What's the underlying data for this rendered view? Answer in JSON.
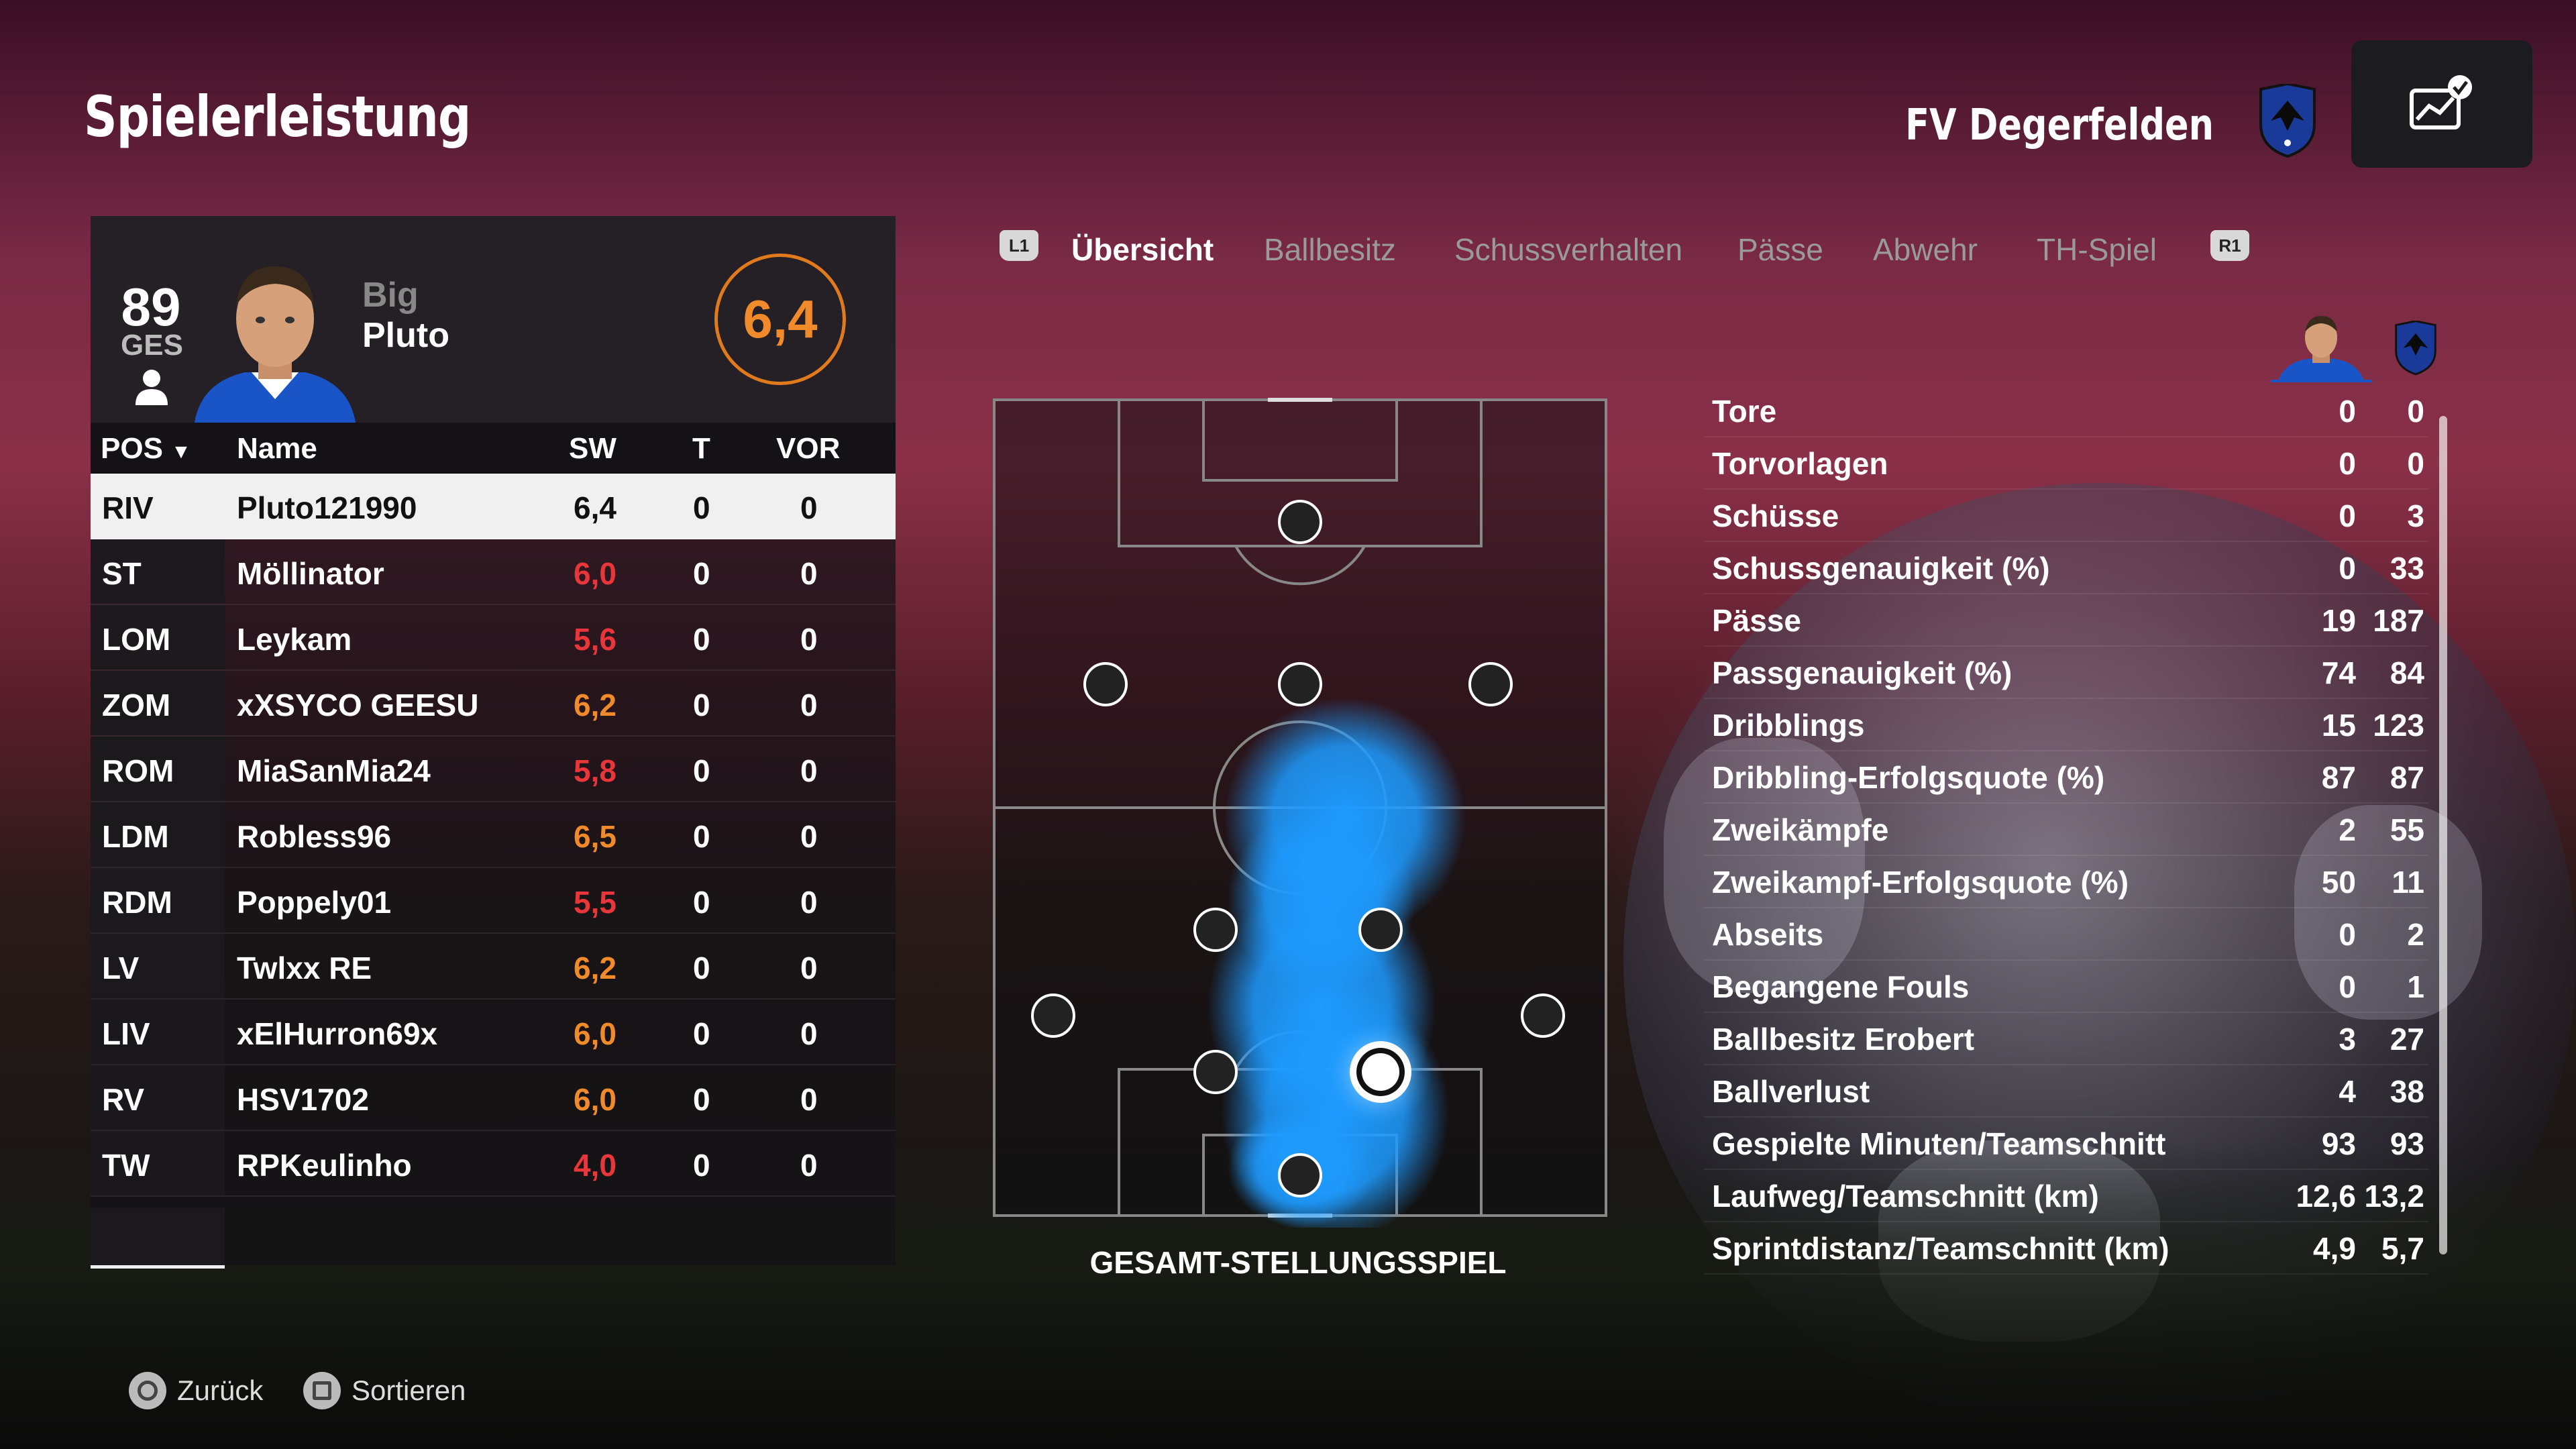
{
  "page": {
    "title": "Spielerleistung"
  },
  "team": {
    "name": "FV Degerfelden"
  },
  "player_card": {
    "overall": "89",
    "overall_label": "GES",
    "name_first": "Big",
    "name_last": "Pluto",
    "rating": "6,4"
  },
  "table": {
    "headers": {
      "pos": "POS",
      "name": "Name",
      "sw": "SW",
      "t": "T",
      "vor": "VOR"
    },
    "rows": [
      {
        "pos": "RIV",
        "name": "Pluto121990",
        "sw": "6,4",
        "t": "0",
        "vor": "0",
        "selected": true
      },
      {
        "pos": "ST",
        "name": "Möllinator",
        "sw": "6,0",
        "t": "0",
        "vor": "0",
        "color": "red"
      },
      {
        "pos": "LOM",
        "name": "Leykam",
        "sw": "5,6",
        "t": "0",
        "vor": "0",
        "color": "red"
      },
      {
        "pos": "ZOM",
        "name": "xXSYCO GEESU",
        "sw": "6,2",
        "t": "0",
        "vor": "0",
        "color": "orange"
      },
      {
        "pos": "ROM",
        "name": "MiaSanMia24",
        "sw": "5,8",
        "t": "0",
        "vor": "0",
        "color": "red"
      },
      {
        "pos": "LDM",
        "name": "Robless96",
        "sw": "6,5",
        "t": "0",
        "vor": "0",
        "color": "orange"
      },
      {
        "pos": "RDM",
        "name": "Poppely01",
        "sw": "5,5",
        "t": "0",
        "vor": "0",
        "color": "red"
      },
      {
        "pos": "LV",
        "name": "Twlxx RE",
        "sw": "6,2",
        "t": "0",
        "vor": "0",
        "color": "orange"
      },
      {
        "pos": "LIV",
        "name": "xElHurron69x",
        "sw": "6,0",
        "t": "0",
        "vor": "0",
        "color": "orange"
      },
      {
        "pos": "RV",
        "name": "HSV1702",
        "sw": "6,0",
        "t": "0",
        "vor": "0",
        "color": "orange"
      },
      {
        "pos": "TW",
        "name": "RPKeulinho",
        "sw": "4,0",
        "t": "0",
        "vor": "0",
        "color": "red"
      }
    ]
  },
  "tabs": {
    "l1": "L1",
    "r1": "R1",
    "items": [
      "Übersicht",
      "Ballbesitz",
      "Schussverhalten",
      "Pässe",
      "Abwehr",
      "TH-Spiel"
    ],
    "active": "Übersicht"
  },
  "pitch": {
    "caption": "GESAMT-STELLUNGSSPIEL"
  },
  "stats": [
    {
      "label": "Tore",
      "player": "0",
      "team": "0"
    },
    {
      "label": "Torvorlagen",
      "player": "0",
      "team": "0"
    },
    {
      "label": "Schüsse",
      "player": "0",
      "team": "3"
    },
    {
      "label": "Schussgenauigkeit (%)",
      "player": "0",
      "team": "33"
    },
    {
      "label": "Pässe",
      "player": "19",
      "team": "187"
    },
    {
      "label": "Passgenauigkeit (%)",
      "player": "74",
      "team": "84"
    },
    {
      "label": "Dribblings",
      "player": "15",
      "team": "123"
    },
    {
      "label": "Dribbling-Erfolgsquote (%)",
      "player": "87",
      "team": "87"
    },
    {
      "label": "Zweikämpfe",
      "player": "2",
      "team": "55"
    },
    {
      "label": "Zweikampf-Erfolgsquote (%)",
      "player": "50",
      "team": "11"
    },
    {
      "label": "Abseits",
      "player": "0",
      "team": "2"
    },
    {
      "label": "Begangene Fouls",
      "player": "0",
      "team": "1"
    },
    {
      "label": "Ballbesitz Erobert",
      "player": "3",
      "team": "27"
    },
    {
      "label": "Ballverlust",
      "player": "4",
      "team": "38"
    },
    {
      "label": "Gespielte Minuten/Teamschnitt",
      "player": "93",
      "team": "93"
    },
    {
      "label": "Laufweg/Teamschnitt (km)",
      "player": "12,6",
      "team": "13,2"
    },
    {
      "label": "Sprintdistanz/Teamschnitt (km)",
      "player": "4,9",
      "team": "5,7"
    }
  ],
  "footer": {
    "back": "Zurück",
    "sort": "Sortieren"
  },
  "colors": {
    "accent_orange": "#f08a2a",
    "low_red": "#e8363a",
    "heat_blue": "#1e9bff"
  }
}
